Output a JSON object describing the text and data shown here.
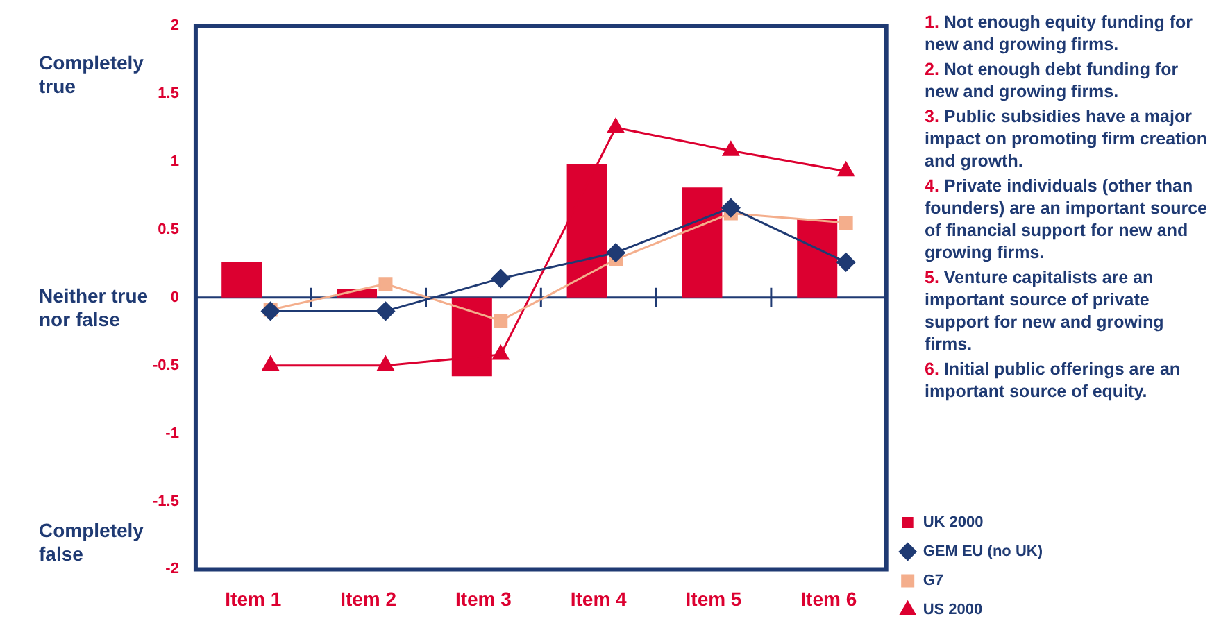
{
  "chart_data": {
    "type": "bar",
    "categories": [
      "Item 1",
      "Item 2",
      "Item 3",
      "Item 4",
      "Item 5",
      "Item 6"
    ],
    "series": [
      {
        "name": "UK 2000",
        "color": "#dc0030",
        "values": [
          0.26,
          0.06,
          -0.58,
          0.98,
          0.81,
          0.58
        ]
      },
      {
        "name": "GEM EU (no UK)",
        "type": "line",
        "marker": "diamond",
        "color": "#1f3a73",
        "values": [
          -0.1,
          -0.1,
          0.14,
          0.33,
          0.66,
          0.26
        ]
      },
      {
        "name": "G7",
        "type": "line",
        "marker": "square",
        "color": "#f4ae8c",
        "values": [
          -0.09,
          0.1,
          -0.17,
          0.28,
          0.62,
          0.55
        ]
      },
      {
        "name": "US 2000",
        "type": "line",
        "marker": "triangle",
        "color": "#dc0030",
        "values": [
          -0.5,
          -0.5,
          -0.42,
          1.25,
          1.08,
          0.93
        ]
      }
    ],
    "ylim": [
      -2,
      2
    ],
    "yticks": [
      -2,
      -1.5,
      -1,
      -0.5,
      0,
      0.5,
      1,
      1.5,
      2
    ],
    "grid": false,
    "legend": "bottom right",
    "ref_lines": [
      {
        "axis": "y",
        "value": 0,
        "color": "#1f3a73"
      }
    ],
    "annotations": [
      "Completely true",
      "Neither true nor false",
      "Completely false",
      "1. Not enough equity funding for new and growing firms.",
      "2. Not enough debt funding for new and growing firms.",
      "3. Public subsidies have a major impact on promoting firm creation and growth.",
      "4. Private individuals (other than founders) are an important source of financial support for new and growing firms.",
      "5. Venture capitalists are an important source of private support for new and growing firms.",
      "6. Initial public offerings are an important source of equity."
    ]
  }
}
